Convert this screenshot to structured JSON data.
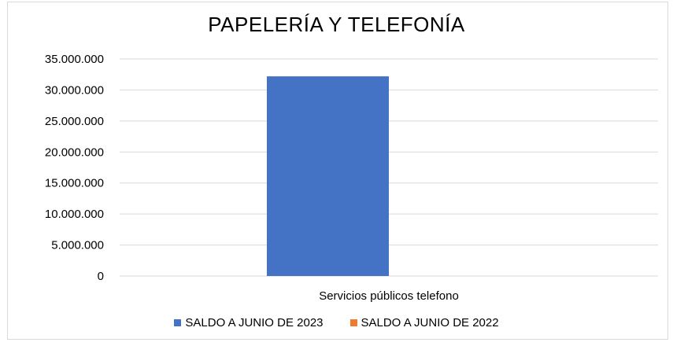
{
  "chart_data": {
    "type": "bar",
    "title": "PAPELERÍA Y TELEFONÍA",
    "categories": [
      "Servicios públicos telefono"
    ],
    "series": [
      {
        "name": "SALDO A JUNIO DE 2023",
        "color": "#4472C4",
        "values": [
          32200000
        ]
      },
      {
        "name": "SALDO A JUNIO DE 2022",
        "color": "#ED7D31",
        "values": [
          0
        ]
      }
    ],
    "y_ticks": [
      "0",
      "5.000.000",
      "10.000.000",
      "15.000.000",
      "20.000.000",
      "25.000.000",
      "30.000.000",
      "35.000.000"
    ],
    "ylim": [
      0,
      35000000
    ],
    "grid": true,
    "legend_position": "bottom"
  }
}
